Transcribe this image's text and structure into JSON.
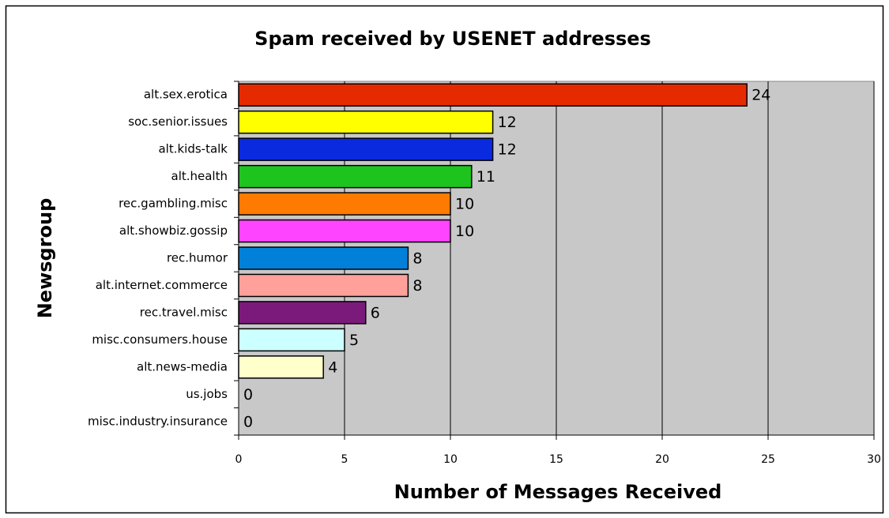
{
  "chart_data": {
    "type": "bar",
    "orientation": "horizontal",
    "title": "Spam received by USENET addresses",
    "x_label": "Number of Messages Received",
    "y_label": "Newsgroup",
    "categories": [
      "alt.sex.erotica",
      "soc.senior.issues",
      "alt.kids-talk",
      "alt.health",
      "rec.gambling.misc",
      "alt.showbiz.gossip",
      "rec.humor",
      "alt.internet.commerce",
      "rec.travel.misc",
      "misc.consumers.house",
      "alt.news-media",
      "us.jobs",
      "misc.industry.insurance"
    ],
    "values": [
      24,
      12,
      12,
      11,
      10,
      10,
      8,
      8,
      6,
      5,
      4,
      0,
      0
    ],
    "colors": [
      "#e62a00",
      "#ffff00",
      "#0a2ae0",
      "#1ec41e",
      "#ff7a00",
      "#ff44ff",
      "#0080d8",
      "#ffa09a",
      "#7c1a7c",
      "#ccffff",
      "#ffffcc",
      "#ffffff",
      "#ffffff"
    ],
    "xlim": [
      0,
      30
    ],
    "xticks": [
      0,
      5,
      10,
      15,
      20,
      25,
      30
    ],
    "grid": true
  }
}
